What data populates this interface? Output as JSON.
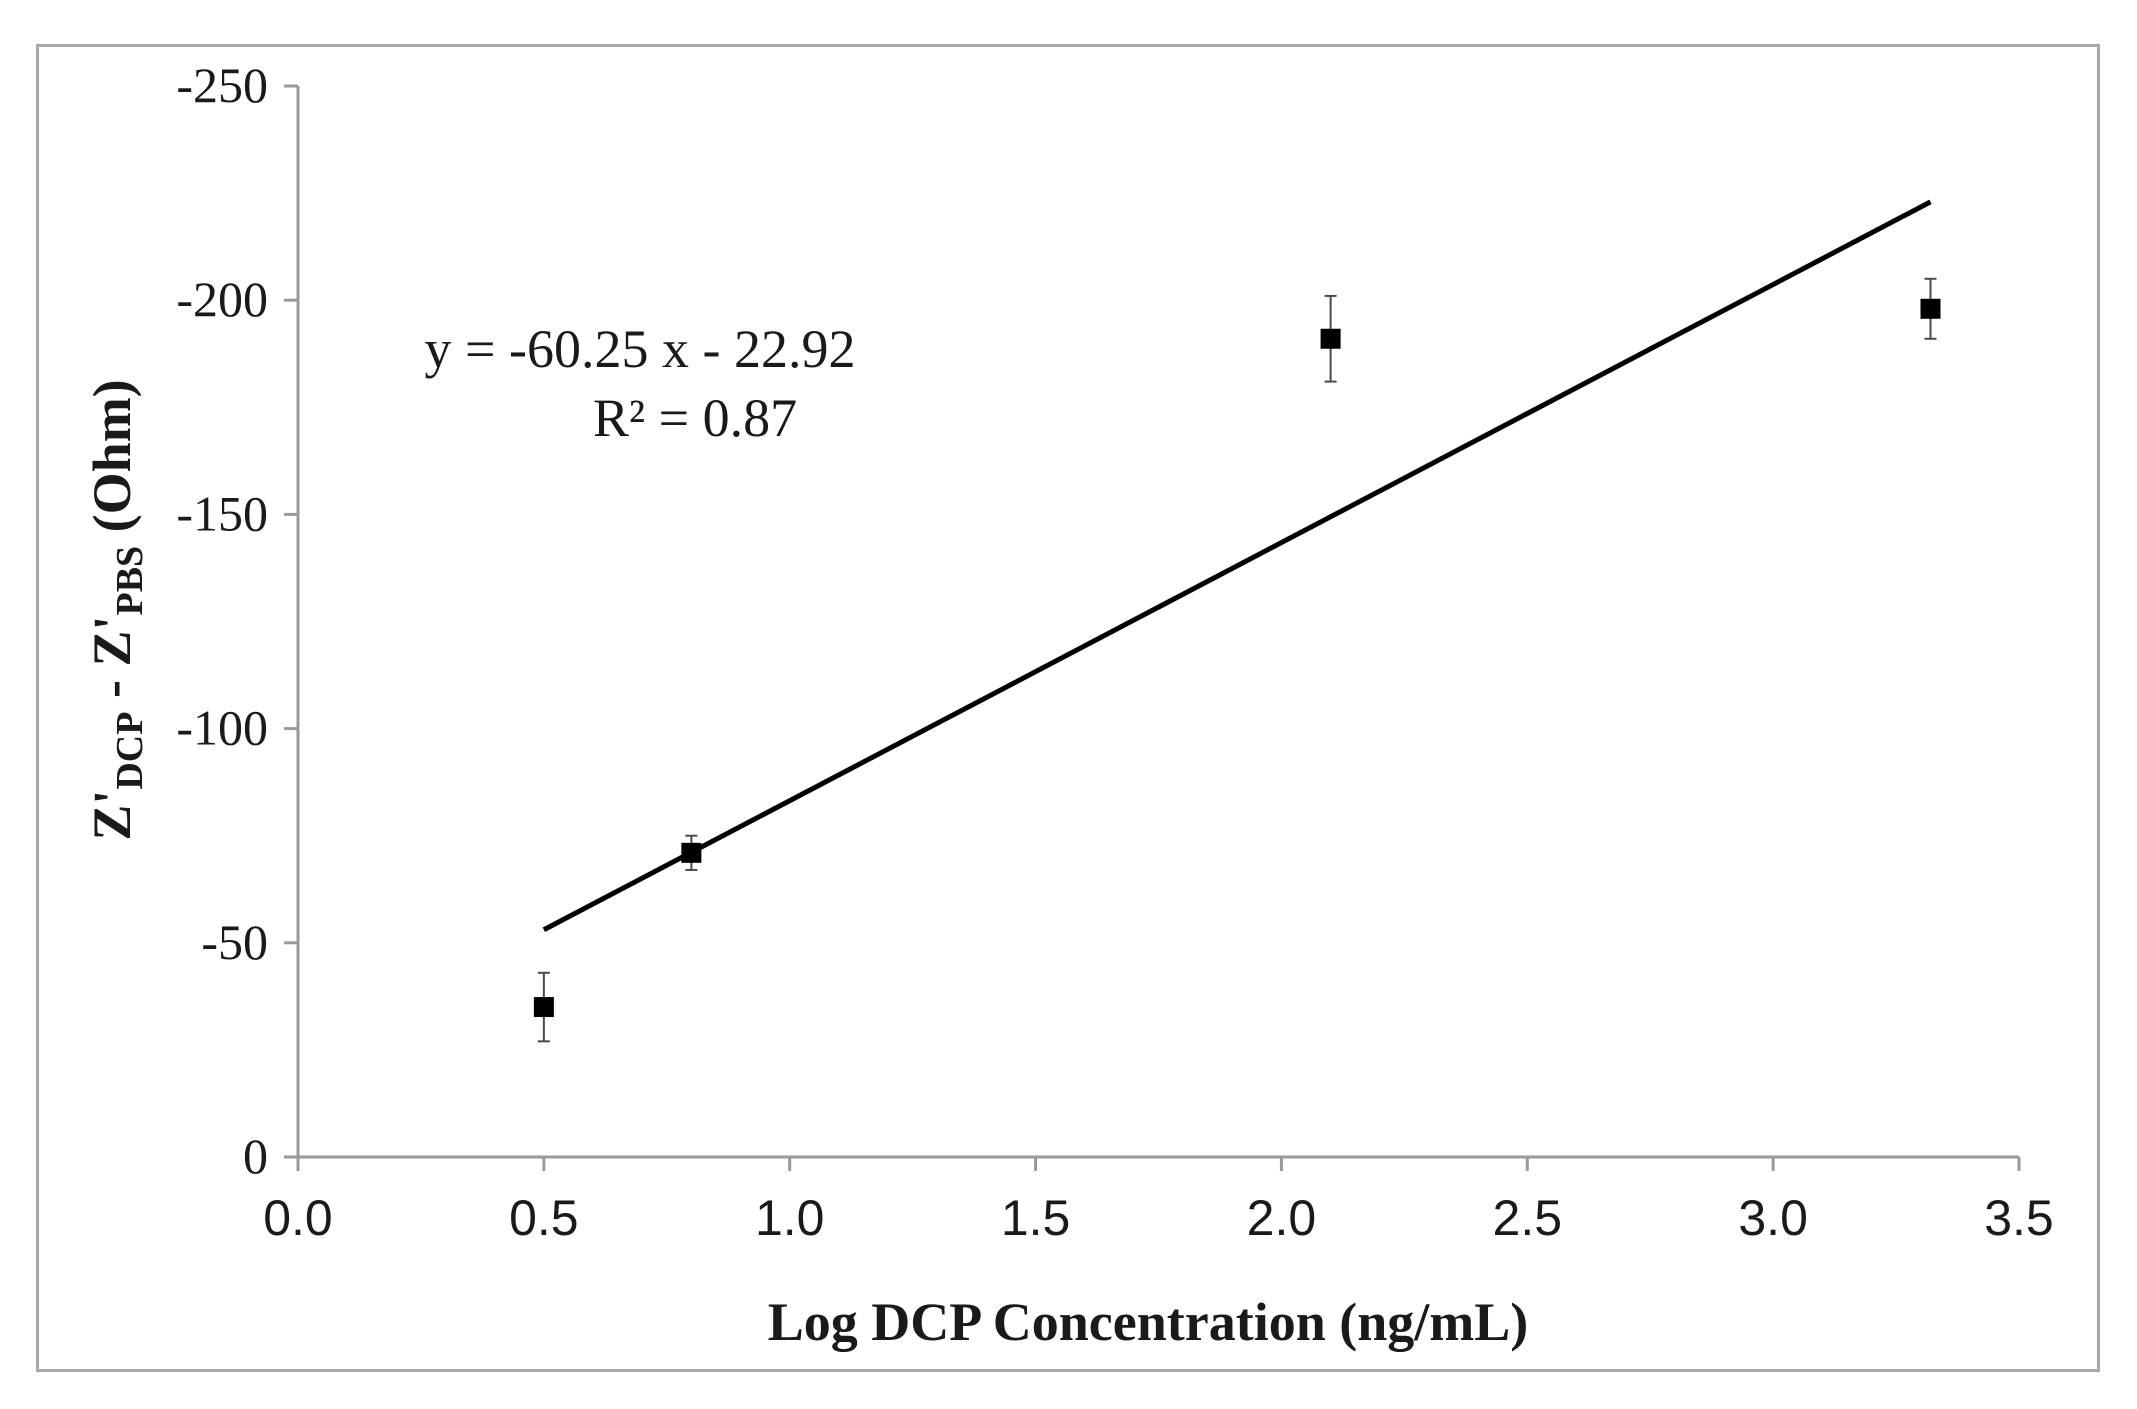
{
  "chart_data": {
    "type": "scatter",
    "title": "",
    "xlabel": "Log DCP Concentration (ng/mL)",
    "ylabel": {
      "main": "Z'",
      "sub1": "DCP",
      "mid": " - Z'",
      "sub2": "PBS",
      "end": " (Ohm)"
    },
    "xlim": [
      0,
      3.5
    ],
    "ylim": [
      0,
      -250
    ],
    "x_ticks": [
      0,
      0.5,
      1,
      1.5,
      2,
      2.5,
      3,
      3.5
    ],
    "x_tick_labels": [
      "0.0",
      "0.5",
      "1.0",
      "1.5",
      "2.0",
      "2.5",
      "3.0",
      "3.5"
    ],
    "y_ticks": [
      0,
      -50,
      -100,
      -150,
      -200,
      -250
    ],
    "y_tick_labels": [
      "0",
      "-50",
      "-100",
      "-150",
      "-200",
      "-250"
    ],
    "grid": false,
    "series": [
      {
        "name": "DCP",
        "marker": "square",
        "color": "#000000",
        "points": [
          {
            "x": 0.5,
            "y": -35,
            "err": 8
          },
          {
            "x": 0.8,
            "y": -71,
            "err": 4
          },
          {
            "x": 2.1,
            "y": -191,
            "err": 10
          },
          {
            "x": 3.32,
            "y": -198,
            "err": 7
          }
        ]
      }
    ],
    "trendline": {
      "slope": -60.25,
      "intercept": -22.92,
      "x_range": [
        0.5,
        3.32
      ],
      "color": "#000000"
    },
    "annotations": {
      "equation": "y = -60.25 x - 22.92",
      "r_squared": "R² = 0.87"
    }
  }
}
